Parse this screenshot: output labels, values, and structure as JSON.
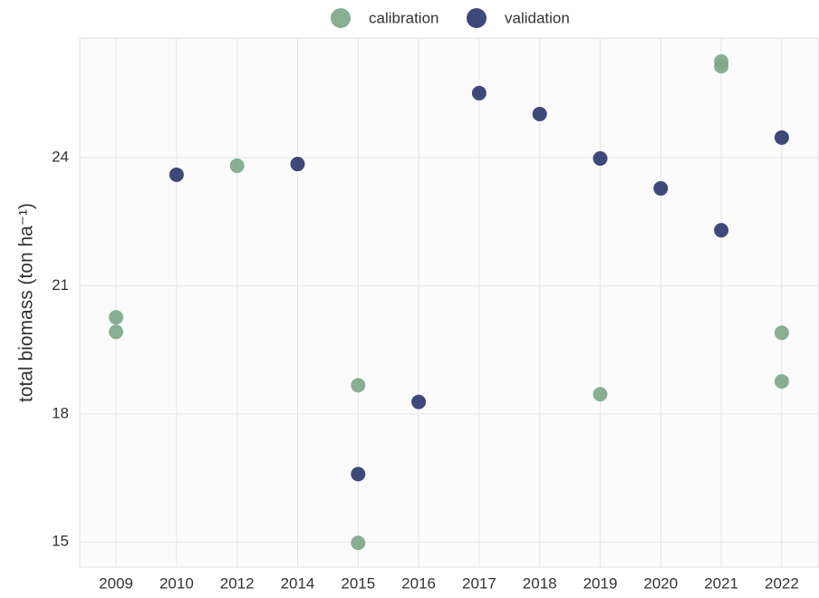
{
  "chart_data": {
    "type": "scatter",
    "y_label": "total biomass (ton ha⁻¹)",
    "categories": [
      "2009",
      "2010",
      "2012",
      "2014",
      "2015",
      "2016",
      "2017",
      "2018",
      "2019",
      "2020",
      "2021",
      "2022"
    ],
    "series": [
      {
        "name": "calibration",
        "color": "#7fa88a",
        "x": [
          "2009",
          "2009",
          "2012",
          "2015",
          "2015",
          "2019",
          "2021",
          "2021",
          "2022",
          "2022"
        ],
        "values": [
          20.26,
          19.92,
          23.81,
          18.67,
          14.98,
          18.46,
          26.25,
          26.14,
          19.9,
          18.76
        ]
      },
      {
        "name": "validation",
        "color": "#2e3a6e",
        "x": [
          "2010",
          "2014",
          "2015",
          "2016",
          "2017",
          "2018",
          "2019",
          "2020",
          "2021",
          "2022"
        ],
        "values": [
          23.6,
          23.85,
          16.59,
          18.28,
          25.51,
          25.02,
          23.98,
          23.28,
          22.3,
          24.47
        ]
      }
    ],
    "ylim": [
      14.41,
      26.8
    ],
    "yticks": [
      15,
      18,
      21,
      24
    ],
    "grid": true,
    "legend": "top"
  }
}
